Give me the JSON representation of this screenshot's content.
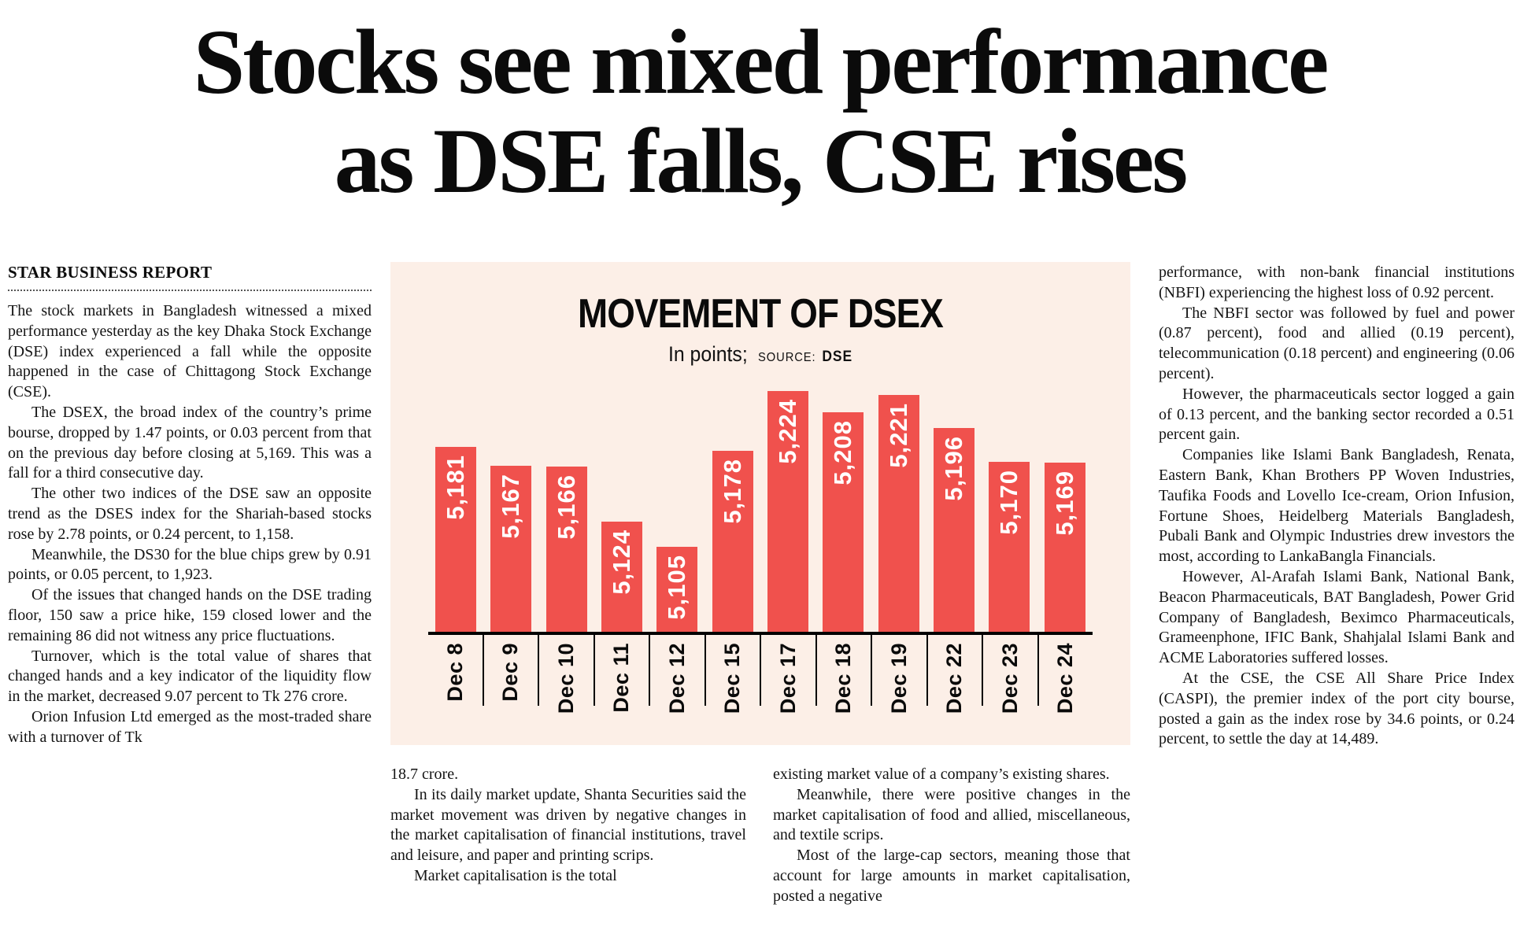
{
  "headline": {
    "line1": "Stocks see mixed performance",
    "line2": "as DSE falls, CSE rises"
  },
  "byline": "STAR BUSINESS REPORT",
  "article": {
    "col_left": [
      "The stock markets in Bangladesh witnessed a mixed performance yesterday as the key Dhaka Stock Exchange (DSE) index experienced a fall while the opposite happened in the case of Chittagong Stock Exchange (CSE).",
      "The DSEX, the broad index of the country’s prime bourse, dropped by 1.47 points, or 0.03 percent from that on the previous day before closing at 5,169. This was a fall for a third consecutive day.",
      "The other two indices of the DSE saw an opposite trend as the DSES index for the Shariah-based stocks rose by 2.78 points, or 0.24 percent, to 1,158.",
      "Meanwhile, the DS30 for the blue chips grew by 0.91 points, or 0.05 percent, to 1,923.",
      "Of the issues that changed hands on the DSE trading floor, 150 saw a price hike, 159 closed lower and the remaining 86 did not witness any price fluctuations.",
      "Turnover, which is the total value of shares that changed hands and a key indicator of the liquidity flow in the market, decreased 9.07 percent to Tk 276 crore.",
      "Orion Infusion Ltd emerged as the most-traded share with a turnover of Tk"
    ],
    "col_mid_a": [
      "18.7 crore.",
      "In its daily market update, Shanta Securities said the market movement was driven by negative changes in the market capitalisation of financial institutions, travel and leisure, and paper and printing scrips.",
      "Market capitalisation is the total"
    ],
    "col_mid_b": [
      "existing market value of a company’s existing shares.",
      "Meanwhile, there were positive changes in the market capitalisation of food and allied, miscellaneous, and textile scrips.",
      "Most of the large-cap sectors, meaning those that account for large amounts in market capitalisation, posted a negative"
    ],
    "col_right": [
      "performance, with non-bank financial institutions (NBFI) experiencing the highest loss of 0.92 percent.",
      "The NBFI sector was followed by fuel and power (0.87 percent), food and allied (0.19 percent), telecommunication (0.18 percent) and engineering (0.06 percent).",
      "However, the pharmaceuticals sector logged a gain of 0.13 percent, and the banking sector recorded a 0.51 percent gain.",
      "Companies like Islami Bank Bangladesh, Renata, Eastern Bank, Khan Brothers PP Woven Industries, Taufika Foods and Lovello Ice-cream, Orion Infusion, Fortune Shoes, Heidelberg Materials Bangladesh, Pubali Bank and Olympic Industries drew investors the most, according to LankaBangla Financials.",
      "However, Al-Arafah Islami Bank, National Bank, Beacon Pharmaceuticals, BAT Bangladesh, Power Grid Company of Bangladesh, Beximco Pharmaceuticals, Grameenphone, IFIC Bank, Shahjalal Islami Bank and ACME Laboratories suffered losses.",
      "At the CSE, the CSE All Share Price Index (CASPI), the premier index of the port city bourse, posted a gain as the index rose by 34.6 points, or 0.24 percent, to settle the day at 14,489."
    ]
  },
  "chart_data": {
    "type": "bar",
    "title": "MOVEMENT OF DSEX",
    "units_label": "In points;",
    "source_label": "SOURCE:",
    "source": "DSE",
    "categories": [
      "Dec 8",
      "Dec 9",
      "Dec 10",
      "Dec 11",
      "Dec 12",
      "Dec 15",
      "Dec 17",
      "Dec 18",
      "Dec 19",
      "Dec 22",
      "Dec 23",
      "Dec 24"
    ],
    "values": [
      5181,
      5167,
      5166,
      5124,
      5105,
      5178,
      5224,
      5208,
      5221,
      5196,
      5170,
      5169
    ],
    "value_labels": [
      "5,181",
      "5,167",
      "5,166",
      "5,124",
      "5,105",
      "5,178",
      "5,224",
      "5,208",
      "5,221",
      "5,196",
      "5,170",
      "5,169"
    ],
    "ylim": [
      5040,
      5230
    ],
    "bar_color": "#f0514d",
    "background_color": "#fcefe7",
    "value_label_color": "#ffffff",
    "axis_color": "#000000",
    "grid": false,
    "legend": false,
    "xlabel": "",
    "ylabel": ""
  }
}
